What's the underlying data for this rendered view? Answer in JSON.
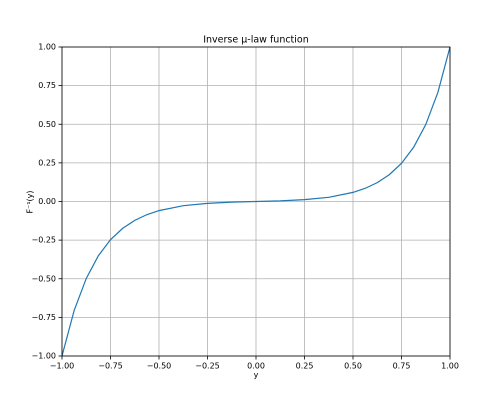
{
  "chart_data": {
    "type": "line",
    "title": "Inverse μ-law function",
    "xlabel": "y",
    "ylabel": "F⁻¹(y)",
    "x": [
      -1,
      -0.9375,
      -0.875,
      -0.8125,
      -0.75,
      -0.6875,
      -0.625,
      -0.5625,
      -0.5,
      -0.375,
      -0.25,
      -0.125,
      0,
      0.125,
      0.25,
      0.375,
      0.5,
      0.5625,
      0.625,
      0.6875,
      0.75,
      0.8125,
      0.875,
      0.9375,
      1
    ],
    "series": [
      {
        "name": "F⁻¹(y)",
        "color": "#1f77b4",
        "values": [
          -1,
          -0.706,
          -0.498,
          -0.351,
          -0.247,
          -0.174,
          -0.122,
          -0.085,
          -0.059,
          -0.027,
          -0.012,
          -0.004,
          0,
          0.004,
          0.012,
          0.027,
          0.059,
          0.085,
          0.122,
          0.174,
          0.247,
          0.351,
          0.498,
          0.706,
          1
        ]
      }
    ],
    "xlim": [
      -1,
      1
    ],
    "ylim": [
      -1,
      1
    ],
    "xticks": [
      {
        "value": -1,
        "label": "−1.00"
      },
      {
        "value": -0.75,
        "label": "−0.75"
      },
      {
        "value": -0.5,
        "label": "−0.50"
      },
      {
        "value": -0.25,
        "label": "−0.25"
      },
      {
        "value": 0,
        "label": "0.00"
      },
      {
        "value": 0.25,
        "label": "0.25"
      },
      {
        "value": 0.5,
        "label": "0.50"
      },
      {
        "value": 0.75,
        "label": "0.75"
      },
      {
        "value": 1,
        "label": "1.00"
      }
    ],
    "yticks": [
      {
        "value": -1,
        "label": "−1.00"
      },
      {
        "value": -0.75,
        "label": "−0.75"
      },
      {
        "value": -0.5,
        "label": "−0.50"
      },
      {
        "value": -0.25,
        "label": "−0.25"
      },
      {
        "value": 0,
        "label": "0.00"
      },
      {
        "value": 0.25,
        "label": "0.25"
      },
      {
        "value": 0.5,
        "label": "0.50"
      },
      {
        "value": 0.75,
        "label": "0.75"
      },
      {
        "value": 1,
        "label": "1.00"
      }
    ],
    "grid": true
  }
}
